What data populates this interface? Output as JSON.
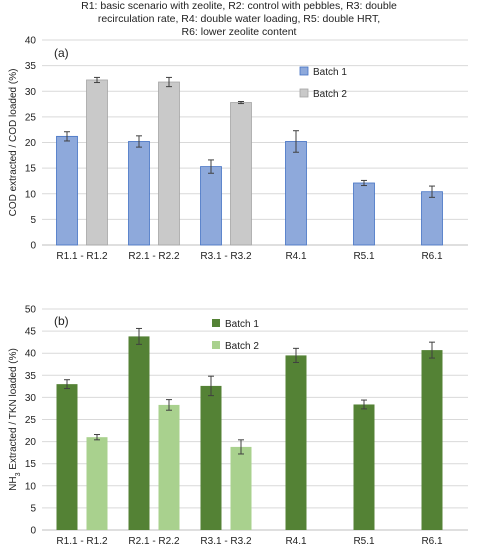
{
  "caption": {
    "lines": [
      "R1: basic scenario with zeolite, R2: control with pebbles, R3: double",
      "recirculation rate, R4: double water loading, R5: double HRT,",
      "R6: lower zeolite content"
    ]
  },
  "colors": {
    "a_batch1": "#8ea9db",
    "a_batch1_edge": "#4472c4",
    "a_batch2": "#c9c9c9",
    "a_batch2_edge": "#a5a5a5",
    "b_batch1": "#548235",
    "b_batch2": "#a9d18e",
    "grid": "#d9d9d9"
  },
  "chart_data": [
    {
      "type": "bar",
      "panel_label": "(a)",
      "ylabel": "COD extracted / COD loaded (%)",
      "ylim": [
        0,
        40
      ],
      "yticks": [
        0,
        5,
        10,
        15,
        20,
        25,
        30,
        35,
        40
      ],
      "grid": true,
      "legend_position": "top-right",
      "categories": [
        "R1.1 - R1.2",
        "R2.1 - R2.2",
        "R3.1 - R3.2",
        "R4.1",
        "R5.1",
        "R6.1"
      ],
      "series": [
        {
          "name": "Batch 1",
          "values": [
            21.2,
            20.2,
            15.3,
            20.2,
            12.1,
            10.4
          ],
          "errors": [
            0.9,
            1.1,
            1.3,
            2.1,
            0.5,
            1.1
          ]
        },
        {
          "name": "Batch 2",
          "values": [
            32.2,
            31.8,
            27.8,
            null,
            null,
            null
          ],
          "errors": [
            0.5,
            0.9,
            0.2,
            null,
            null,
            null
          ]
        }
      ]
    },
    {
      "type": "bar",
      "panel_label": "(b)",
      "ylabel_parts": [
        "NH",
        "3",
        " Extracted / TKN loaded (%)"
      ],
      "ylim": [
        0,
        50
      ],
      "yticks": [
        0,
        5,
        10,
        15,
        20,
        25,
        30,
        35,
        40,
        45,
        50
      ],
      "grid": true,
      "legend_position": "top-center",
      "categories": [
        "R1.1 - R1.2",
        "R2.1 - R2.2",
        "R3.1 - R3.2",
        "R4.1",
        "R5.1",
        "R6.1"
      ],
      "series": [
        {
          "name": "Batch 1",
          "values": [
            33.0,
            43.8,
            32.6,
            39.5,
            28.4,
            40.7
          ],
          "errors": [
            1.0,
            1.8,
            2.2,
            1.6,
            1.0,
            1.8
          ]
        },
        {
          "name": "Batch 2",
          "values": [
            21.0,
            28.3,
            18.8,
            null,
            null,
            null
          ],
          "errors": [
            0.6,
            1.2,
            1.6,
            null,
            null,
            null
          ]
        }
      ]
    }
  ]
}
